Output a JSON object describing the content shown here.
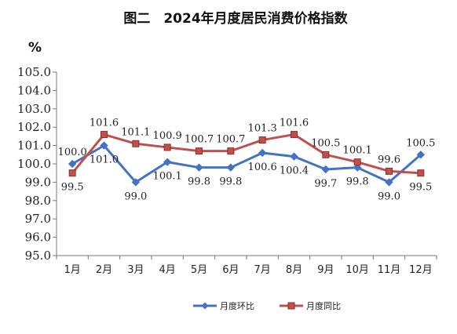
{
  "chart_data": {
    "type": "line",
    "title": "图二　2024年月度居民消费价格指数",
    "ylabel": "%",
    "xlabel": "",
    "categories": [
      "1月",
      "2月",
      "3月",
      "4月",
      "5月",
      "6月",
      "7月",
      "8月",
      "9月",
      "10月",
      "11月",
      "12月"
    ],
    "ylim": [
      95.0,
      105.0
    ],
    "yticks": [
      "95.0",
      "96.0",
      "97.0",
      "98.0",
      "99.0",
      "100.0",
      "101.0",
      "102.0",
      "103.0",
      "104.0",
      "105.0"
    ],
    "grid": false,
    "legend_position": "bottom",
    "series": [
      {
        "name": "月度环比",
        "color": "#4472C4",
        "marker": "diamond",
        "values": [
          100.0,
          101.0,
          99.0,
          100.1,
          99.8,
          99.8,
          100.6,
          100.4,
          99.7,
          99.8,
          99.0,
          100.5
        ],
        "labels": [
          "100.0",
          "101.0",
          "99.0",
          "100.1",
          "99.8",
          "99.8",
          "100.6",
          "100.4",
          "99.7",
          "99.8",
          "99.0",
          "100.5"
        ]
      },
      {
        "name": "月度同比",
        "color": "#C0504D",
        "marker": "square",
        "values": [
          99.5,
          101.6,
          101.1,
          100.9,
          100.7,
          100.7,
          101.3,
          101.6,
          100.5,
          100.1,
          99.6,
          99.5
        ],
        "labels": [
          "99.5",
          "101.6",
          "101.1",
          "100.9",
          "100.7",
          "100.7",
          "101.3",
          "101.6",
          "100.5",
          "100.1",
          "99.6",
          "99.5"
        ]
      }
    ]
  }
}
